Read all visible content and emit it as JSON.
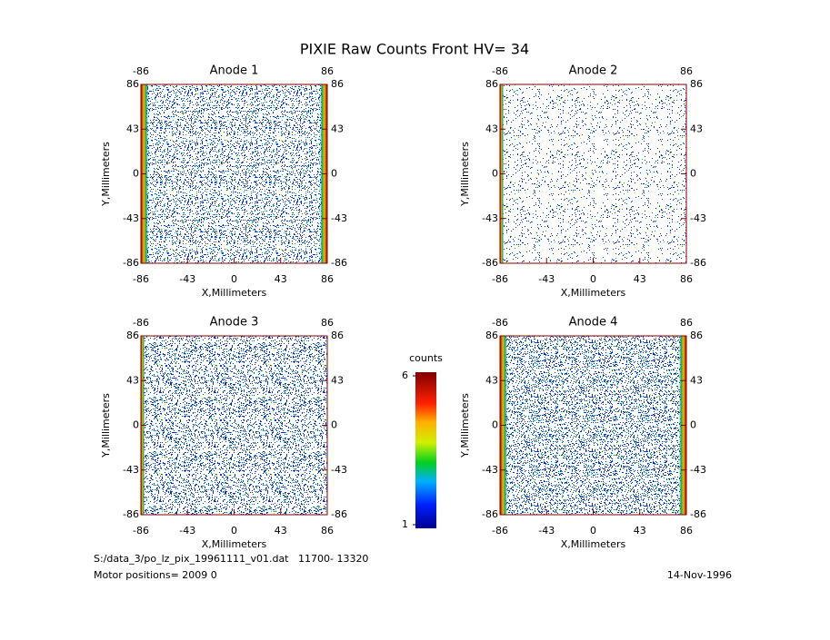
{
  "title": "PIXIE Raw Counts Front HV= 34",
  "chart_data": [
    {
      "type": "heatmap",
      "title": "Anode 1",
      "xlabel": "X,Millimeters",
      "ylabel": "Y,Millimeters",
      "xlim": [
        -86,
        86
      ],
      "ylim": [
        -86,
        86
      ],
      "xticks": [
        -86,
        -43,
        0,
        43,
        86
      ],
      "yticks": [
        -86,
        -43,
        0,
        43,
        86
      ],
      "x2ticks": [
        -86,
        86
      ],
      "y2ticks": [
        -86,
        -43,
        0,
        43,
        86
      ],
      "axis_color": "#800000"
    },
    {
      "type": "heatmap",
      "title": "Anode 2",
      "xlabel": "X,Millimeters",
      "ylabel": "Y,Millimeters",
      "xlim": [
        -86,
        86
      ],
      "ylim": [
        -86,
        86
      ],
      "xticks": [
        -86,
        -43,
        0,
        43,
        86
      ],
      "yticks": [
        -86,
        -43,
        0,
        43,
        86
      ],
      "x2ticks": [
        -86,
        86
      ],
      "y2ticks": [
        -86,
        -43,
        0,
        43,
        86
      ],
      "axis_color": "#800000"
    },
    {
      "type": "heatmap",
      "title": "Anode 3",
      "xlabel": "X,Millimeters",
      "ylabel": "Y,Millimeters",
      "xlim": [
        -86,
        86
      ],
      "ylim": [
        -86,
        86
      ],
      "xticks": [
        -86,
        -43,
        0,
        43,
        86
      ],
      "yticks": [
        -86,
        -43,
        0,
        43,
        86
      ],
      "x2ticks": [
        -86,
        86
      ],
      "y2ticks": [
        -86,
        -43,
        0,
        43,
        86
      ],
      "axis_color": "#800000"
    },
    {
      "type": "heatmap",
      "title": "Anode 4",
      "xlabel": "X,Millimeters",
      "ylabel": "Y,Millimeters",
      "xlim": [
        -86,
        86
      ],
      "ylim": [
        -86,
        86
      ],
      "xticks": [
        -86,
        -43,
        0,
        43,
        86
      ],
      "yticks": [
        -86,
        -43,
        0,
        43,
        86
      ],
      "x2ticks": [
        -86,
        86
      ],
      "y2ticks": [
        -86,
        -43,
        0,
        43,
        86
      ],
      "axis_color": "#800000"
    }
  ],
  "colorbar": {
    "label": "counts",
    "zlim": [
      1,
      6
    ],
    "ticks": [
      1,
      6
    ]
  },
  "footer": {
    "file": "S:/data_3/po_lz_pix_19961111_v01.dat   11700- 13320",
    "motor": "Motor positions= 2009 0",
    "date": "14-Nov-1996"
  }
}
